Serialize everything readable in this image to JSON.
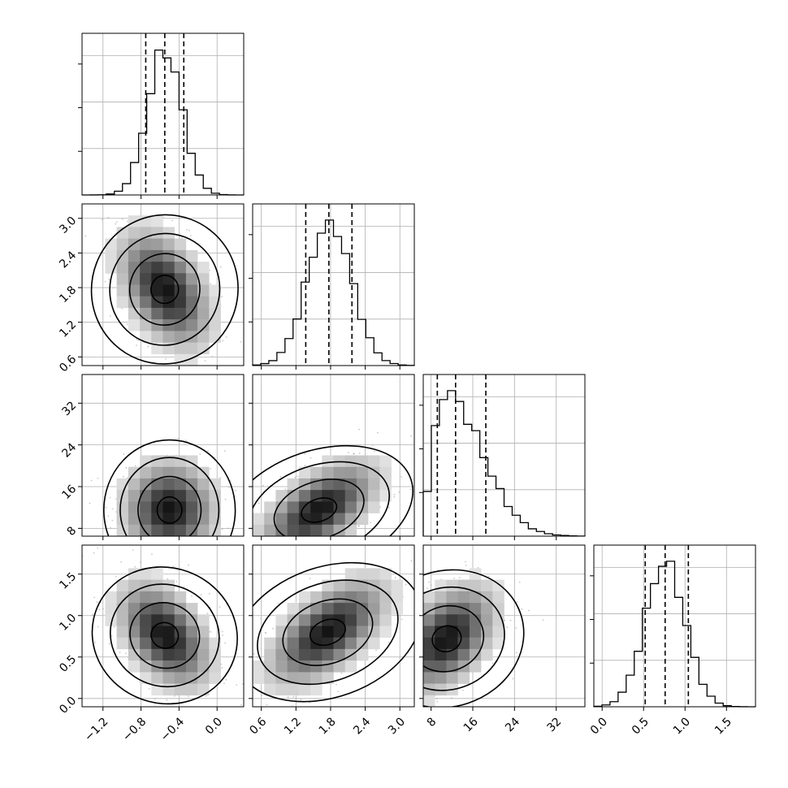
{
  "chart_data": {
    "type": "corner",
    "grid": true,
    "parameters": [
      {
        "ticks": [
          "−1.2",
          "−0.8",
          "−0.4",
          "0.0"
        ],
        "tick_values": [
          -1.2,
          -0.8,
          -0.4,
          0.0
        ],
        "range": [
          -1.42,
          0.28
        ],
        "quantiles": [
          -0.75,
          -0.55,
          -0.35
        ],
        "hist_peak": -0.55,
        "hist_sigma": 0.18
      },
      {
        "ticks": [
          "0.6",
          "1.2",
          "1.8",
          "2.4",
          "3.0"
        ],
        "tick_values": [
          0.6,
          1.2,
          1.8,
          2.4,
          3.0
        ],
        "range": [
          0.45,
          3.25
        ],
        "quantiles": [
          1.37,
          1.77,
          2.17
        ],
        "hist_peak": 1.78,
        "hist_sigma": 0.38
      },
      {
        "ticks": [
          "8",
          "16",
          "24",
          "32"
        ],
        "tick_values": [
          8,
          16,
          24,
          32
        ],
        "range": [
          6.5,
          37.5
        ],
        "quantiles": [
          9.2,
          12.7,
          18.5
        ],
        "hist_peak": 10.5,
        "hist_sigma": 3.5
      },
      {
        "ticks": [
          "0.0",
          "0.5",
          "1.0",
          "1.5"
        ],
        "tick_values": [
          0.0,
          0.5,
          1.0,
          1.5
        ],
        "range": [
          -0.1,
          1.85
        ],
        "quantiles": [
          0.52,
          0.76,
          1.04
        ],
        "hist_peak": 0.76,
        "hist_sigma": 0.24
      }
    ],
    "pairs": [
      {
        "col": 0,
        "row": 1,
        "center": [
          -0.55,
          1.77
        ],
        "corr": -0.45
      },
      {
        "col": 0,
        "row": 2,
        "center": [
          -0.5,
          11.5
        ],
        "corr": 0.0
      },
      {
        "col": 1,
        "row": 2,
        "center": [
          1.6,
          11.5
        ],
        "corr": 0.6
      },
      {
        "col": 0,
        "row": 3,
        "center": [
          -0.55,
          0.76
        ],
        "corr": -0.45
      },
      {
        "col": 1,
        "row": 3,
        "center": [
          1.75,
          0.8
        ],
        "corr": 0.6
      },
      {
        "col": 2,
        "row": 3,
        "center": [
          11.0,
          0.72
        ],
        "corr": 0.45
      }
    ],
    "quantile_levels": [
      0.16,
      0.5,
      0.84
    ]
  }
}
